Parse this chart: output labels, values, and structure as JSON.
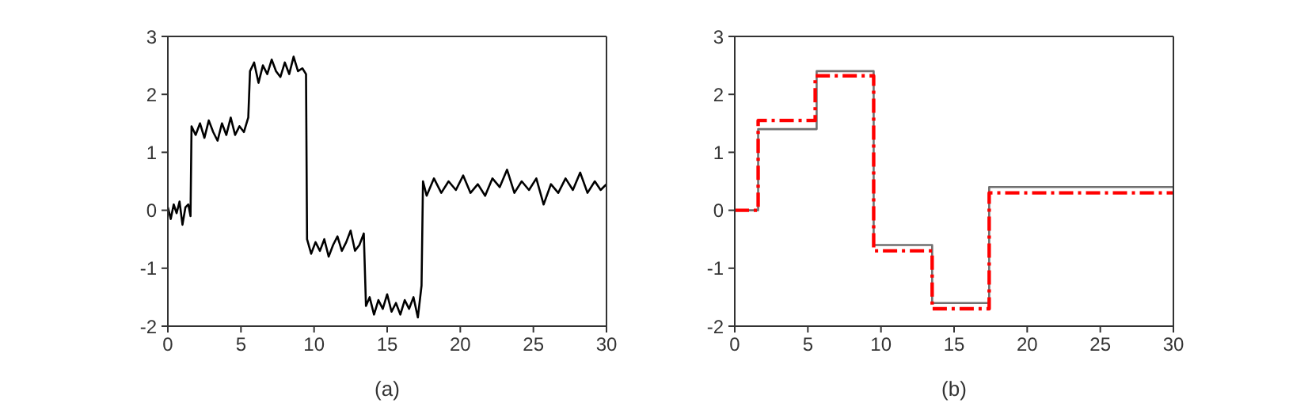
{
  "chart_data": [
    {
      "type": "line",
      "xlabel": "(a)",
      "xlim": [
        0,
        30
      ],
      "xticks": [
        0,
        5,
        10,
        15,
        20,
        25,
        30
      ],
      "ylim": [
        -2,
        3
      ],
      "yticks": [
        -2,
        -1,
        0,
        1,
        2,
        3
      ],
      "legend": false,
      "marker": "none",
      "series": [
        {
          "color": "#000000",
          "line_style": "solid",
          "x": [
            0,
            0.2,
            0.4,
            0.6,
            0.8,
            1.0,
            1.2,
            1.4,
            1.55,
            1.62,
            1.9,
            2.2,
            2.5,
            2.8,
            3.1,
            3.4,
            3.7,
            4.0,
            4.3,
            4.6,
            4.9,
            5.2,
            5.5,
            5.62,
            5.9,
            6.2,
            6.5,
            6.8,
            7.1,
            7.4,
            7.7,
            8.0,
            8.3,
            8.6,
            8.9,
            9.2,
            9.45,
            9.52,
            9.8,
            10.1,
            10.4,
            10.7,
            11.0,
            11.3,
            11.6,
            11.9,
            12.2,
            12.5,
            12.8,
            13.1,
            13.4,
            13.55,
            13.8,
            14.1,
            14.4,
            14.7,
            15.0,
            15.3,
            15.6,
            15.9,
            16.2,
            16.5,
            16.8,
            17.1,
            17.35,
            17.45,
            17.7,
            18.2,
            18.7,
            19.2,
            19.7,
            20.2,
            20.7,
            21.2,
            21.7,
            22.2,
            22.7,
            23.2,
            23.7,
            24.2,
            24.7,
            25.2,
            25.7,
            26.2,
            26.7,
            27.2,
            27.7,
            28.2,
            28.7,
            29.2,
            29.6,
            30
          ],
          "values": [
            0.05,
            -0.15,
            0.1,
            -0.05,
            0.15,
            -0.25,
            0.05,
            0.1,
            -0.1,
            1.45,
            1.3,
            1.5,
            1.25,
            1.55,
            1.35,
            1.2,
            1.5,
            1.3,
            1.6,
            1.3,
            1.45,
            1.35,
            1.6,
            2.4,
            2.55,
            2.2,
            2.5,
            2.35,
            2.6,
            2.4,
            2.3,
            2.55,
            2.35,
            2.65,
            2.4,
            2.45,
            2.35,
            -0.5,
            -0.75,
            -0.55,
            -0.7,
            -0.5,
            -0.8,
            -0.6,
            -0.45,
            -0.7,
            -0.55,
            -0.35,
            -0.7,
            -0.6,
            -0.4,
            -1.65,
            -1.5,
            -1.8,
            -1.55,
            -1.7,
            -1.45,
            -1.75,
            -1.6,
            -1.8,
            -1.55,
            -1.7,
            -1.5,
            -1.85,
            -1.3,
            0.5,
            0.25,
            0.55,
            0.3,
            0.5,
            0.35,
            0.6,
            0.3,
            0.45,
            0.25,
            0.55,
            0.4,
            0.7,
            0.3,
            0.5,
            0.35,
            0.55,
            0.1,
            0.45,
            0.3,
            0.55,
            0.35,
            0.65,
            0.3,
            0.5,
            0.35,
            0.45
          ]
        }
      ]
    },
    {
      "type": "step",
      "xlabel": "(b)",
      "xlim": [
        0,
        30
      ],
      "xticks": [
        0,
        5,
        10,
        15,
        20,
        25,
        30
      ],
      "ylim": [
        -2,
        3
      ],
      "yticks": [
        -2,
        -1,
        0,
        1,
        2,
        3
      ],
      "legend": false,
      "marker": "none",
      "series": [
        {
          "color": "#707070",
          "line_style": "solid",
          "x": [
            0,
            1.6,
            5.6,
            9.5,
            13.5,
            17.4,
            30
          ],
          "values": [
            0,
            1.4,
            2.4,
            -0.6,
            -1.6,
            0.4,
            0.4
          ]
        },
        {
          "color": "#ff0000",
          "line_style": "dashed",
          "x": [
            0,
            1.6,
            5.5,
            9.5,
            13.5,
            17.4,
            30
          ],
          "values": [
            0,
            1.55,
            2.32,
            -0.7,
            -1.7,
            0.3,
            0.3
          ]
        }
      ]
    }
  ]
}
